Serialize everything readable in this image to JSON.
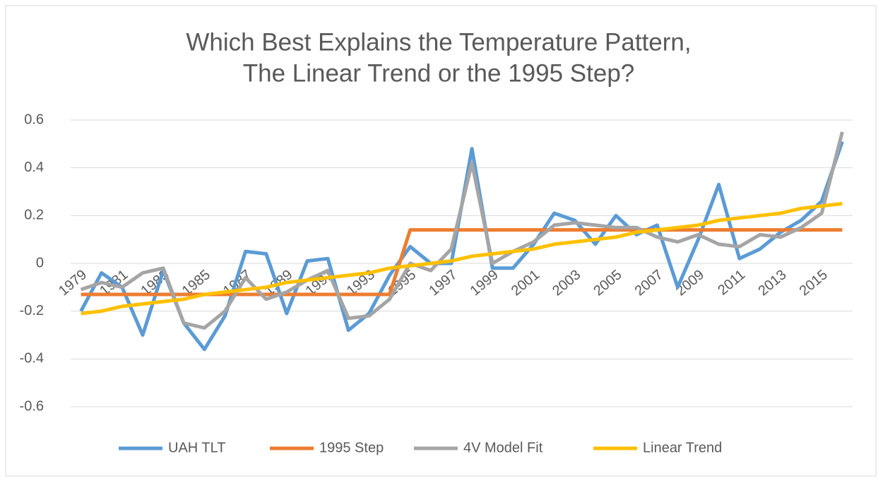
{
  "chart_data": {
    "type": "line",
    "title": [
      "Which Best Explains the Temperature Pattern,",
      "The Linear Trend or the 1995 Step?"
    ],
    "categories": [
      "1979",
      null,
      "1981",
      null,
      "1983",
      null,
      "1985",
      null,
      "1987",
      null,
      "1989",
      null,
      "1991",
      null,
      "1993",
      null,
      "1995",
      null,
      "1997",
      null,
      "1999",
      null,
      "2001",
      null,
      "2003",
      null,
      "2005",
      null,
      "2007",
      null,
      "2009",
      null,
      "2011",
      null,
      "2013",
      null,
      "2015",
      null
    ],
    "series": [
      {
        "name": "UAH TLT",
        "color": "#5b9bd5",
        "values": [
          -0.2,
          -0.04,
          -0.1,
          -0.3,
          -0.03,
          -0.25,
          -0.36,
          -0.22,
          0.05,
          0.04,
          -0.21,
          0.01,
          0.02,
          -0.28,
          -0.21,
          -0.05,
          0.07,
          0.0,
          0.0,
          0.48,
          -0.02,
          -0.02,
          0.08,
          0.21,
          0.18,
          0.08,
          0.2,
          0.12,
          0.16,
          -0.1,
          0.1,
          0.33,
          0.02,
          0.06,
          0.13,
          0.18,
          0.26,
          0.51
        ]
      },
      {
        "name": "1995 Step",
        "color": "#ed7d31",
        "values": [
          -0.13,
          -0.13,
          -0.13,
          -0.13,
          -0.13,
          -0.13,
          -0.13,
          -0.13,
          -0.13,
          -0.13,
          -0.13,
          -0.13,
          -0.13,
          -0.13,
          -0.13,
          -0.13,
          0.14,
          0.14,
          0.14,
          0.14,
          0.14,
          0.14,
          0.14,
          0.14,
          0.14,
          0.14,
          0.14,
          0.14,
          0.14,
          0.14,
          0.14,
          0.14,
          0.14,
          0.14,
          0.14,
          0.14,
          0.14,
          0.14
        ]
      },
      {
        "name": "4V Model Fit",
        "color": "#a5a5a5",
        "values": [
          -0.11,
          -0.08,
          -0.1,
          -0.04,
          -0.02,
          -0.25,
          -0.27,
          -0.2,
          -0.06,
          -0.15,
          -0.12,
          -0.07,
          -0.03,
          -0.23,
          -0.22,
          -0.15,
          0.0,
          -0.03,
          0.06,
          0.42,
          0.0,
          0.05,
          0.09,
          0.16,
          0.17,
          0.16,
          0.15,
          0.15,
          0.11,
          0.09,
          0.12,
          0.08,
          0.07,
          0.12,
          0.11,
          0.15,
          0.21,
          0.55
        ]
      },
      {
        "name": "Linear Trend",
        "color": "#ffc000",
        "values": [
          -0.21,
          -0.2,
          -0.18,
          -0.17,
          -0.16,
          -0.15,
          -0.13,
          -0.12,
          -0.11,
          -0.1,
          -0.08,
          -0.07,
          -0.06,
          -0.05,
          -0.04,
          -0.02,
          -0.01,
          0.0,
          0.01,
          0.03,
          0.04,
          0.05,
          0.06,
          0.08,
          0.09,
          0.1,
          0.11,
          0.13,
          0.14,
          0.15,
          0.16,
          0.18,
          0.19,
          0.2,
          0.21,
          0.23,
          0.24,
          0.25
        ]
      }
    ],
    "ylim": [
      -0.6,
      0.6
    ],
    "yticks": [
      -0.6,
      -0.4,
      -0.2,
      0,
      0.2,
      0.4,
      0.6
    ],
    "grid": true,
    "legend": "bottom"
  }
}
